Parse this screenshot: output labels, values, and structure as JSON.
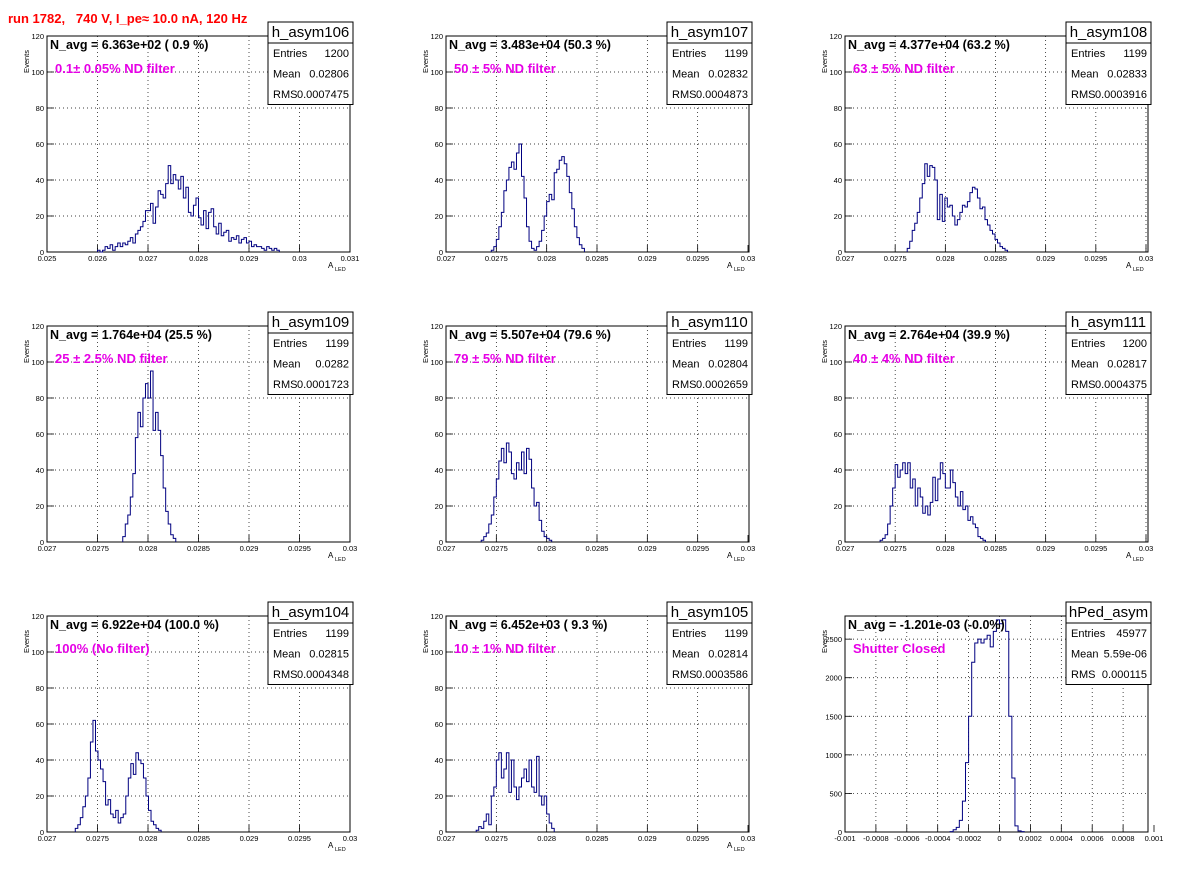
{
  "title": "run 1782,   740 V, I_pe≈ 10.0 nA, 120 Hz",
  "colors": {
    "histogram": "#000080",
    "annotation": "#e600e6",
    "title": "#ff0000",
    "grid": "#000000"
  },
  "chart_data": [
    {
      "type": "bar",
      "name": "h_asym106",
      "ylabel": "Events",
      "xlabel": "A",
      "xlabel_sub": "LED",
      "navg": "N_avg = 6.363e+02 ( 0.9 %)",
      "annotation": "0.1± 0.05% ND filter",
      "stats": [
        [
          "Entries",
          "1200"
        ],
        [
          "Mean",
          "0.02806"
        ],
        [
          "RMS",
          "0.0007475"
        ]
      ],
      "xlim": [
        0.025,
        0.031
      ],
      "ylim": [
        0,
        120
      ],
      "xticks": [
        "0.025",
        "0.026",
        "0.027",
        "0.028",
        "0.029",
        "0.03",
        "0.031"
      ],
      "yticks": [
        "0",
        "20",
        "40",
        "60",
        "80",
        "100",
        "120"
      ],
      "binwidth": 5e-05,
      "x_start": 0.026,
      "values": [
        1,
        0,
        1,
        3,
        2,
        4,
        1,
        3,
        5,
        3,
        5,
        4,
        6,
        8,
        5,
        10,
        12,
        14,
        17,
        23,
        23,
        27,
        16,
        25,
        34,
        32,
        30,
        38,
        48,
        38,
        43,
        40,
        35,
        42,
        30,
        36,
        22,
        20,
        26,
        30,
        19,
        15,
        23,
        13,
        22,
        24,
        14,
        10,
        16,
        9,
        11,
        12,
        6,
        8,
        7,
        9,
        5,
        7,
        8,
        5,
        6,
        3,
        4,
        3,
        3,
        2,
        1,
        3,
        2,
        1,
        2,
        1
      ]
    },
    {
      "type": "bar",
      "name": "h_asym107",
      "ylabel": "Events",
      "xlabel": "A",
      "xlabel_sub": "LED",
      "navg": "N_avg = 3.483e+04 (50.3 %)",
      "annotation": "50 ± 5% ND filter",
      "stats": [
        [
          "Entries",
          "1199"
        ],
        [
          "Mean",
          "0.02832"
        ],
        [
          "RMS",
          "0.0004873"
        ]
      ],
      "xlim": [
        0.027,
        0.03
      ],
      "ylim": [
        0,
        120
      ],
      "xticks": [
        "0.027",
        "0.0275",
        "0.028",
        "0.0285",
        "0.029",
        "0.0295",
        "0.03"
      ],
      "yticks": [
        "0",
        "20",
        "40",
        "60",
        "80",
        "100",
        "120"
      ],
      "binwidth": 2.5e-05,
      "x_start": 0.02745,
      "values": [
        1,
        3,
        7,
        14,
        22,
        34,
        40,
        47,
        50,
        46,
        55,
        60,
        42,
        30,
        14,
        6,
        2,
        1,
        3,
        6,
        12,
        20,
        28,
        32,
        29,
        44,
        46,
        51,
        53,
        49,
        42,
        33,
        24,
        14,
        8,
        4,
        2
      ]
    },
    {
      "type": "bar",
      "name": "h_asym108",
      "ylabel": "Events",
      "xlabel": "A",
      "xlabel_sub": "LED",
      "navg": "N_avg = 4.377e+04 (63.2 %)",
      "annotation": "63 ± 5% ND filter",
      "stats": [
        [
          "Entries",
          "1199"
        ],
        [
          "Mean",
          "0.02833"
        ],
        [
          "RMS",
          "0.0003916"
        ]
      ],
      "xlim": [
        0.027,
        0.03
      ],
      "ylim": [
        0,
        120
      ],
      "xticks": [
        "0.027",
        "0.0275",
        "0.028",
        "0.0285",
        "0.029",
        "0.0295",
        "0.03"
      ],
      "yticks": [
        "0",
        "20",
        "40",
        "60",
        "80",
        "100",
        "120"
      ],
      "binwidth": 2.5e-05,
      "x_start": 0.02762,
      "values": [
        2,
        6,
        12,
        16,
        22,
        30,
        38,
        49,
        42,
        48,
        47,
        40,
        18,
        32,
        17,
        30,
        25,
        26,
        20,
        15,
        18,
        22,
        26,
        25,
        28,
        33,
        36,
        35,
        30,
        24,
        25,
        18,
        15,
        12,
        10,
        7,
        5,
        3,
        2,
        1
      ]
    },
    {
      "type": "bar",
      "name": "h_asym109",
      "ylabel": "Events",
      "xlabel": "A",
      "xlabel_sub": "LED",
      "navg": "N_avg = 1.764e+04 (25.5 %)",
      "annotation": "25 ± 2.5% ND filter",
      "stats": [
        [
          "Entries",
          "1199"
        ],
        [
          "Mean",
          "0.0282"
        ],
        [
          "RMS",
          "0.0001723"
        ]
      ],
      "xlim": [
        0.027,
        0.03
      ],
      "ylim": [
        0,
        120
      ],
      "xticks": [
        "0.027",
        "0.0275",
        "0.028",
        "0.0285",
        "0.029",
        "0.0295",
        "0.03"
      ],
      "yticks": [
        "0",
        "20",
        "40",
        "60",
        "80",
        "100",
        "120"
      ],
      "binwidth": 2.5e-05,
      "x_start": 0.02775,
      "values": [
        3,
        10,
        15,
        25,
        38,
        58,
        72,
        64,
        80,
        88,
        80,
        95,
        62,
        72,
        62,
        48,
        30,
        17,
        10,
        4,
        2
      ]
    },
    {
      "type": "bar",
      "name": "h_asym110",
      "ylabel": "Events",
      "xlabel": "A",
      "xlabel_sub": "LED",
      "navg": "N_avg = 5.507e+04 (79.6 %)",
      "annotation": "79 ± 5% ND filter",
      "stats": [
        [
          "Entries",
          "1199"
        ],
        [
          "Mean",
          "0.02804"
        ],
        [
          "RMS",
          "0.0002659"
        ]
      ],
      "xlim": [
        0.027,
        0.03
      ],
      "ylim": [
        0,
        120
      ],
      "xticks": [
        "0.027",
        "0.0275",
        "0.028",
        "0.0285",
        "0.029",
        "0.0295",
        "0.03"
      ],
      "yticks": [
        "0",
        "20",
        "40",
        "60",
        "80",
        "100",
        "120"
      ],
      "binwidth": 2.5e-05,
      "x_start": 0.02735,
      "values": [
        1,
        3,
        5,
        10,
        15,
        25,
        35,
        45,
        52,
        44,
        55,
        50,
        38,
        35,
        44,
        40,
        50,
        38,
        52,
        46,
        30,
        20,
        22,
        12,
        6,
        3,
        2,
        1
      ]
    },
    {
      "type": "bar",
      "name": "h_asym111",
      "ylabel": "Events",
      "xlabel": "A",
      "xlabel_sub": "LED",
      "navg": "N_avg = 2.764e+04 (39.9 %)",
      "annotation": "40 ± 4% ND filter",
      "stats": [
        [
          "Entries",
          "1200"
        ],
        [
          "Mean",
          "0.02817"
        ],
        [
          "RMS",
          "0.0004375"
        ]
      ],
      "xlim": [
        0.027,
        0.03
      ],
      "ylim": [
        0,
        120
      ],
      "xticks": [
        "0.027",
        "0.0275",
        "0.028",
        "0.0285",
        "0.029",
        "0.0295",
        "0.03"
      ],
      "yticks": [
        "0",
        "20",
        "40",
        "60",
        "80",
        "100",
        "120"
      ],
      "binwidth": 2.5e-05,
      "x_start": 0.02735,
      "values": [
        1,
        2,
        4,
        10,
        20,
        30,
        43,
        36,
        40,
        44,
        38,
        44,
        30,
        35,
        20,
        30,
        25,
        16,
        20,
        15,
        22,
        36,
        23,
        35,
        44,
        38,
        30,
        30,
        40,
        33,
        25,
        20,
        28,
        18,
        20,
        12,
        14,
        10,
        8,
        3,
        2,
        1
      ]
    },
    {
      "type": "bar",
      "name": "h_asym104",
      "ylabel": "Events",
      "xlabel": "A",
      "xlabel_sub": "LED",
      "navg": "N_avg = 6.922e+04 (100.0 %)",
      "annotation": "100% (No filter)",
      "stats": [
        [
          "Entries",
          "1199"
        ],
        [
          "Mean",
          "0.02815"
        ],
        [
          "RMS",
          "0.0004348"
        ]
      ],
      "xlim": [
        0.027,
        0.03
      ],
      "ylim": [
        0,
        120
      ],
      "xticks": [
        "0.027",
        "0.0275",
        "0.028",
        "0.0285",
        "0.029",
        "0.0295",
        "0.03"
      ],
      "yticks": [
        "0",
        "20",
        "40",
        "60",
        "80",
        "100",
        "120"
      ],
      "binwidth": 2.5e-05,
      "x_start": 0.02728,
      "values": [
        2,
        4,
        8,
        14,
        20,
        30,
        50,
        62,
        45,
        40,
        35,
        28,
        15,
        18,
        10,
        8,
        12,
        5,
        8,
        10,
        20,
        30,
        38,
        32,
        44,
        40,
        38,
        30,
        20,
        12,
        6,
        4,
        2,
        1
      ]
    },
    {
      "type": "bar",
      "name": "h_asym105",
      "ylabel": "Events",
      "xlabel": "A",
      "xlabel_sub": "LED",
      "navg": "N_avg = 6.452e+03 ( 9.3 %)",
      "annotation": "10 ± 1% ND filter",
      "stats": [
        [
          "Entries",
          "1199"
        ],
        [
          "Mean",
          "0.02814"
        ],
        [
          "RMS",
          "0.0003586"
        ]
      ],
      "xlim": [
        0.027,
        0.03
      ],
      "ylim": [
        0,
        120
      ],
      "xticks": [
        "0.027",
        "0.0275",
        "0.028",
        "0.0285",
        "0.029",
        "0.0295",
        "0.03"
      ],
      "yticks": [
        "0",
        "20",
        "40",
        "60",
        "80",
        "100",
        "120"
      ],
      "binwidth": 2.5e-05,
      "x_start": 0.0273,
      "values": [
        1,
        3,
        2,
        6,
        10,
        4,
        20,
        25,
        40,
        44,
        30,
        35,
        44,
        22,
        40,
        25,
        18,
        25,
        30,
        35,
        28,
        40,
        25,
        22,
        42,
        20,
        15,
        20,
        10,
        5,
        2
      ]
    },
    {
      "type": "bar",
      "name": "hPed_asym",
      "ylabel": "Events",
      "xlabel": "",
      "xlabel_sub": "",
      "navg": "N_avg = -1.201e-03 (-0.0%)",
      "annotation": "Shutter Closed",
      "stats": [
        [
          "Entries",
          "45977"
        ],
        [
          "Mean",
          "5.59e-06"
        ],
        [
          "RMS",
          "0.000115"
        ]
      ],
      "xlim": [
        -0.001,
        0.001
      ],
      "ylim": [
        0,
        2800
      ],
      "xticks": [
        "-0.001",
        "-0.0008",
        "-0.0006",
        "-0.0004",
        "-0.0002",
        "0",
        "0.0002",
        "0.0004",
        "0.0006",
        "0.0008",
        "0.001"
      ],
      "yticks": [
        "0",
        "500",
        "1000",
        "1500",
        "2000",
        "2500"
      ],
      "binwidth": 2e-05,
      "x_start": -0.00032,
      "values": [
        5,
        30,
        60,
        150,
        400,
        900,
        1500,
        2200,
        2450,
        2500,
        2450,
        2500,
        2550,
        2400,
        2600,
        2750,
        2700,
        2750,
        2600,
        1500,
        700,
        80,
        15,
        5
      ]
    }
  ]
}
